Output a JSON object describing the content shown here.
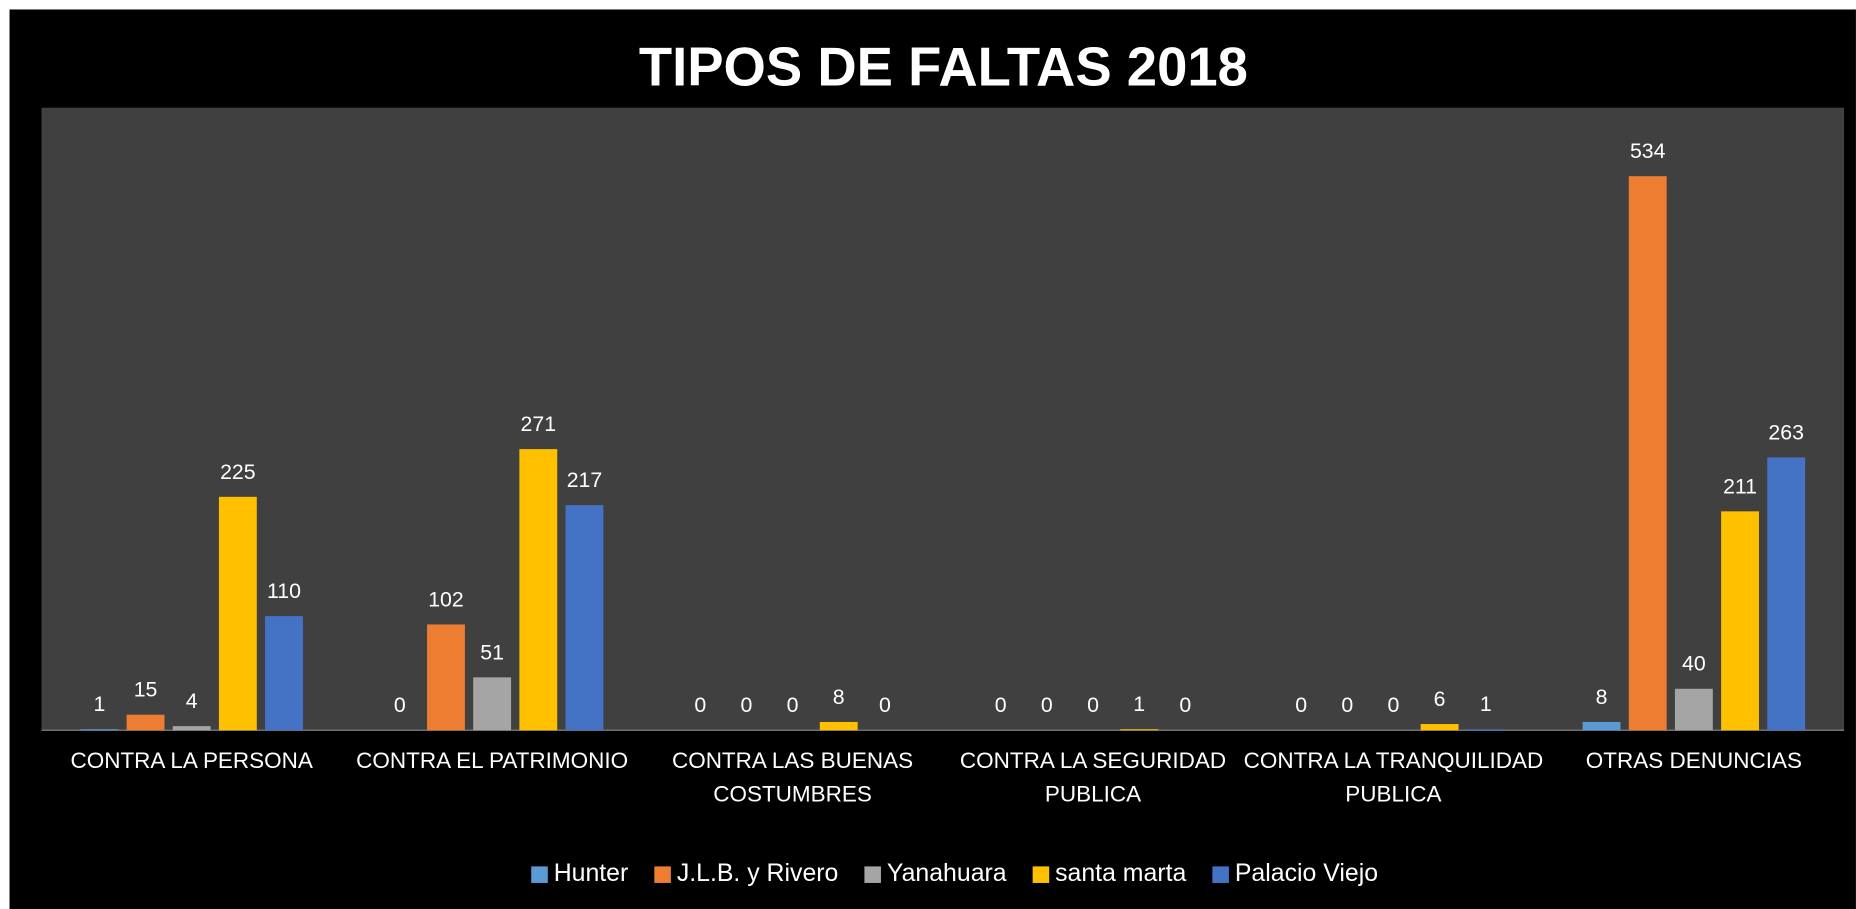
{
  "chart_data": {
    "type": "bar",
    "title": "TIPOS DE FALTAS 2018",
    "categories": [
      "CONTRA LA PERSONA",
      "CONTRA EL PATRIMONIO",
      "CONTRA LAS BUENAS COSTUMBRES",
      "CONTRA LA SEGURIDAD PUBLICA",
      "CONTRA LA TRANQUILIDAD PUBLICA",
      "OTRAS DENUNCIAS"
    ],
    "series": [
      {
        "name": "Hunter",
        "color": "#5b9bd5",
        "values": [
          1,
          0,
          0,
          0,
          0,
          8
        ]
      },
      {
        "name": "J.L.B. y Rivero",
        "color": "#ed7d31",
        "values": [
          15,
          102,
          0,
          0,
          0,
          534
        ]
      },
      {
        "name": "Yanahuara",
        "color": "#a5a5a5",
        "values": [
          4,
          51,
          0,
          0,
          0,
          40
        ]
      },
      {
        "name": "santa marta",
        "color": "#ffc000",
        "values": [
          225,
          271,
          8,
          1,
          6,
          211
        ]
      },
      {
        "name": "Palacio Viejo",
        "color": "#4472c4",
        "values": [
          110,
          217,
          0,
          0,
          1,
          263
        ]
      }
    ],
    "ylim": [
      0,
      600
    ],
    "legend": "bottom"
  }
}
